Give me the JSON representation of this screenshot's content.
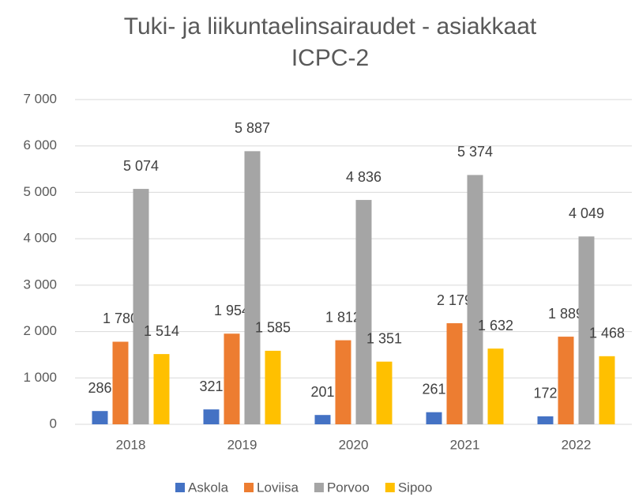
{
  "chart_data": {
    "type": "bar",
    "title": [
      "Tuki- ja liikuntaelinsairaudet - asiakkaat",
      "ICPC-2"
    ],
    "categories": [
      "2018",
      "2019",
      "2020",
      "2021",
      "2022"
    ],
    "series": [
      {
        "name": "Askola",
        "color": "#4472c4",
        "values": [
          286,
          321,
          201,
          261,
          172
        ]
      },
      {
        "name": "Loviisa",
        "color": "#ed7d31",
        "values": [
          1780,
          1954,
          1812,
          2179,
          1889
        ],
        "value_labels": [
          "1 780",
          "1 954",
          "1 812",
          "2 179",
          "1 889"
        ]
      },
      {
        "name": "Porvoo",
        "color": "#a5a5a5",
        "values": [
          5074,
          5887,
          4836,
          5374,
          4049
        ],
        "value_labels": [
          "5 074",
          "5 887",
          "4 836",
          "5 374",
          "4 049"
        ]
      },
      {
        "name": "Sipoo",
        "color": "#ffc000",
        "values": [
          1514,
          1585,
          1351,
          1632,
          1468
        ],
        "value_labels": [
          "1 514",
          "1 585",
          "1 351",
          "1 632",
          "1 468"
        ]
      }
    ],
    "ylim": [
      0,
      7000
    ],
    "yticks": [
      0,
      {
        "value": 1000,
        "label": "1 000"
      },
      {
        "value": 2000,
        "label": "2 000"
      },
      {
        "value": 3000,
        "label": "3 000"
      },
      {
        "value": 4000,
        "label": "4 000"
      },
      {
        "value": 5000,
        "label": "5 000"
      },
      {
        "value": 6000,
        "label": "6 000"
      },
      {
        "value": 7000,
        "label": "7 000"
      }
    ],
    "grid": true,
    "legend": "bottom"
  }
}
